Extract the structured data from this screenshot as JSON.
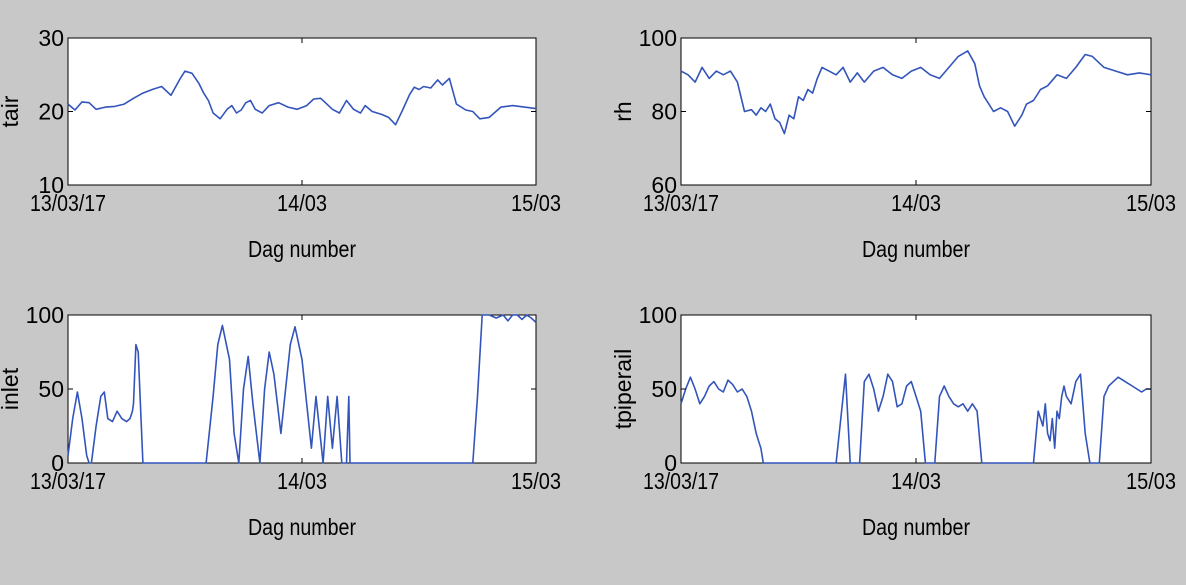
{
  "colors": {
    "figure_bg": "#c8c8c8",
    "axes_bg": "#ffffff",
    "line": "#3355bb",
    "axis": "#000000"
  },
  "chart_data": [
    {
      "id": "tair",
      "type": "line",
      "xlabel": "Dag number",
      "ylabel": "tair",
      "xlim": [
        0,
        2
      ],
      "ylim": [
        10,
        30
      ],
      "xticks": [
        0,
        1,
        2
      ],
      "xtick_labels": [
        "13/03/17",
        "14/03",
        "15/03"
      ],
      "yticks": [
        10,
        20,
        30
      ],
      "ytick_labels": [
        "10",
        "20",
        "30"
      ],
      "grid": false,
      "series": [
        {
          "x": [
            0,
            0.03,
            0.06,
            0.09,
            0.12,
            0.16,
            0.2,
            0.24,
            0.28,
            0.32,
            0.36,
            0.4,
            0.44,
            0.48,
            0.5,
            0.53,
            0.56,
            0.58,
            0.6,
            0.62,
            0.65,
            0.68,
            0.7,
            0.72,
            0.74,
            0.76,
            0.78,
            0.8,
            0.83,
            0.86,
            0.9,
            0.94,
            0.98,
            1.02,
            1.05,
            1.08,
            1.1,
            1.13,
            1.16,
            1.19,
            1.22,
            1.25,
            1.27,
            1.3,
            1.34,
            1.37,
            1.4,
            1.43,
            1.46,
            1.48,
            1.5,
            1.52,
            1.55,
            1.58,
            1.6,
            1.63,
            1.66,
            1.7,
            1.73,
            1.76,
            1.8,
            1.85,
            1.9,
            1.95,
            2.0
          ],
          "y": [
            21,
            20.2,
            21.3,
            21.2,
            20.3,
            20.6,
            20.7,
            21,
            21.8,
            22.5,
            23,
            23.4,
            22.2,
            24.5,
            25.5,
            25.2,
            23.8,
            22.5,
            21.5,
            19.8,
            19,
            20.3,
            20.8,
            19.8,
            20.2,
            21.2,
            21.5,
            20.3,
            19.8,
            20.8,
            21.2,
            20.6,
            20.3,
            20.8,
            21.7,
            21.8,
            21.2,
            20.3,
            19.8,
            21.5,
            20.3,
            19.8,
            20.8,
            20,
            19.6,
            19.2,
            18.2,
            20.2,
            22.3,
            23.3,
            23,
            23.4,
            23.2,
            24.3,
            23.6,
            24.5,
            21,
            20.2,
            20,
            19,
            19.2,
            20.6,
            20.8,
            20.6,
            20.4
          ]
        }
      ]
    },
    {
      "id": "rh",
      "type": "line",
      "xlabel": "Dag number",
      "ylabel": "rh",
      "xlim": [
        0,
        2
      ],
      "ylim": [
        60,
        100
      ],
      "xticks": [
        0,
        1,
        2
      ],
      "xtick_labels": [
        "13/03/17",
        "14/03",
        "15/03"
      ],
      "yticks": [
        60,
        80,
        100
      ],
      "ytick_labels": [
        "60",
        "80",
        "100"
      ],
      "grid": false,
      "series": [
        {
          "x": [
            0,
            0.03,
            0.06,
            0.09,
            0.12,
            0.15,
            0.18,
            0.21,
            0.24,
            0.27,
            0.3,
            0.32,
            0.34,
            0.36,
            0.38,
            0.4,
            0.42,
            0.44,
            0.46,
            0.48,
            0.5,
            0.52,
            0.54,
            0.56,
            0.58,
            0.6,
            0.63,
            0.66,
            0.69,
            0.72,
            0.75,
            0.78,
            0.82,
            0.86,
            0.9,
            0.94,
            0.98,
            1.02,
            1.06,
            1.1,
            1.14,
            1.18,
            1.22,
            1.25,
            1.27,
            1.29,
            1.31,
            1.33,
            1.36,
            1.39,
            1.42,
            1.45,
            1.47,
            1.5,
            1.53,
            1.56,
            1.6,
            1.64,
            1.68,
            1.72,
            1.75,
            1.8,
            1.85,
            1.9,
            1.95,
            2.0
          ],
          "y": [
            91,
            90,
            88,
            92,
            89,
            91,
            90,
            91,
            88,
            80,
            80.5,
            79,
            81,
            80,
            82,
            78,
            77,
            74,
            79,
            78,
            84,
            83,
            86,
            85,
            89,
            92,
            91,
            90,
            92,
            88,
            90.5,
            88,
            91,
            92,
            90,
            89,
            91,
            92,
            90,
            89,
            92,
            95,
            96.5,
            93,
            87,
            84,
            82,
            80,
            81,
            80,
            76,
            79,
            82,
            83,
            86,
            87,
            90,
            89,
            92,
            95.5,
            95,
            92,
            91,
            90,
            90.5,
            90
          ]
        }
      ]
    },
    {
      "id": "inlet",
      "type": "line",
      "xlabel": "Dag number",
      "ylabel": "inlet",
      "xlim": [
        0,
        2
      ],
      "ylim": [
        0,
        100
      ],
      "xticks": [
        0,
        1,
        2
      ],
      "xtick_labels": [
        "13/03/17",
        "14/03",
        "15/03"
      ],
      "yticks": [
        0,
        50,
        100
      ],
      "ytick_labels": [
        "0",
        "50",
        "100"
      ],
      "grid": false,
      "series": [
        {
          "x": [
            0,
            0.02,
            0.04,
            0.06,
            0.08,
            0.09,
            0.1,
            0.12,
            0.14,
            0.155,
            0.17,
            0.19,
            0.21,
            0.23,
            0.25,
            0.265,
            0.275,
            0.28,
            0.29,
            0.3,
            0.32,
            0.4,
            0.48,
            0.55,
            0.59,
            0.62,
            0.64,
            0.66,
            0.69,
            0.71,
            0.73,
            0.75,
            0.77,
            0.79,
            0.82,
            0.84,
            0.86,
            0.88,
            0.91,
            0.93,
            0.95,
            0.97,
            1.0,
            1.02,
            1.04,
            1.06,
            1.09,
            1.11,
            1.13,
            1.15,
            1.17,
            1.19,
            1.2,
            1.205,
            1.21,
            1.215,
            1.22,
            1.23,
            1.235,
            1.24,
            1.26,
            1.3,
            1.4,
            1.5,
            1.6,
            1.62,
            1.65,
            1.67,
            1.68,
            1.7,
            1.73,
            1.75,
            1.77,
            1.8,
            1.83,
            1.86,
            1.88,
            1.9,
            1.92,
            1.94,
            1.96,
            1.98,
            2.0
          ],
          "y": [
            5,
            30,
            48,
            30,
            5,
            0,
            0,
            25,
            45,
            48,
            30,
            28,
            35,
            30,
            28,
            30,
            35,
            40,
            80,
            75,
            0,
            0,
            0,
            0,
            0,
            45,
            80,
            93,
            70,
            20,
            0,
            50,
            72,
            40,
            0,
            50,
            75,
            60,
            20,
            50,
            80,
            92,
            70,
            40,
            10,
            45,
            0,
            45,
            10,
            45,
            0,
            0,
            45,
            0,
            0,
            0,
            0,
            0,
            0,
            0,
            0,
            0,
            0,
            0,
            0,
            0,
            0,
            0,
            0,
            0,
            0,
            45,
            100,
            100,
            98,
            100,
            96,
            100,
            100,
            97,
            100,
            98,
            95
          ]
        }
      ]
    },
    {
      "id": "tpiperail",
      "type": "line",
      "xlabel": "Dag number",
      "ylabel": "tpiperail",
      "xlim": [
        0,
        2
      ],
      "ylim": [
        0,
        100
      ],
      "xticks": [
        0,
        1,
        2
      ],
      "xtick_labels": [
        "13/03/17",
        "14/03",
        "15/03"
      ],
      "yticks": [
        0,
        50,
        100
      ],
      "ytick_labels": [
        "0",
        "50",
        "100"
      ],
      "grid": false,
      "series": [
        {
          "x": [
            0,
            0.02,
            0.04,
            0.06,
            0.08,
            0.1,
            0.12,
            0.14,
            0.16,
            0.18,
            0.2,
            0.22,
            0.24,
            0.26,
            0.28,
            0.3,
            0.32,
            0.33,
            0.34,
            0.35,
            0.36,
            0.37,
            0.4,
            0.5,
            0.6,
            0.66,
            0.68,
            0.7,
            0.72,
            0.74,
            0.76,
            0.78,
            0.8,
            0.82,
            0.84,
            0.86,
            0.88,
            0.9,
            0.92,
            0.94,
            0.96,
            0.98,
            1.0,
            1.02,
            1.04,
            1.06,
            1.08,
            1.1,
            1.12,
            1.14,
            1.16,
            1.18,
            1.2,
            1.22,
            1.24,
            1.26,
            1.28,
            1.3,
            1.34,
            1.4,
            1.46,
            1.5,
            1.52,
            1.54,
            1.55,
            1.56,
            1.57,
            1.58,
            1.59,
            1.6,
            1.61,
            1.62,
            1.63,
            1.64,
            1.66,
            1.68,
            1.7,
            1.72,
            1.74,
            1.76,
            1.78,
            1.8,
            1.82,
            1.84,
            1.86,
            1.88,
            1.9,
            1.92,
            1.94,
            1.96,
            1.98,
            2.0
          ],
          "y": [
            40,
            50,
            58,
            50,
            40,
            45,
            52,
            55,
            50,
            48,
            56,
            53,
            48,
            50,
            45,
            35,
            20,
            15,
            10,
            0,
            0,
            0,
            0,
            0,
            0,
            0,
            30,
            60,
            0,
            0,
            0,
            55,
            60,
            50,
            35,
            45,
            60,
            55,
            38,
            40,
            52,
            55,
            45,
            35,
            0,
            0,
            0,
            45,
            52,
            45,
            40,
            38,
            40,
            35,
            40,
            35,
            0,
            0,
            0,
            0,
            0,
            0,
            35,
            25,
            40,
            20,
            15,
            30,
            10,
            35,
            30,
            45,
            52,
            45,
            40,
            55,
            60,
            20,
            0,
            0,
            0,
            45,
            52,
            55,
            58,
            56,
            54,
            52,
            50,
            48,
            50,
            50
          ]
        }
      ]
    }
  ]
}
